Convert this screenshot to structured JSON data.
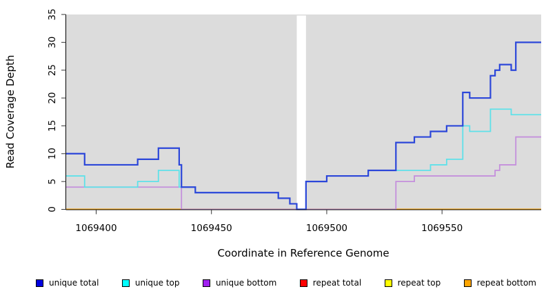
{
  "chart": {
    "y_axis": {
      "label": "Read Coverage Depth"
    },
    "x_axis": {
      "label": "Coordinate in Reference Genome"
    }
  },
  "chart_data": {
    "type": "line",
    "step": true,
    "title": "",
    "xlabel": "Coordinate in Reference Genome",
    "ylabel": "Read Coverage Depth",
    "xlim": [
      1069387,
      1069593
    ],
    "ylim": [
      0,
      35
    ],
    "x_ticks": [
      1069400,
      1069450,
      1069500,
      1069550
    ],
    "y_ticks": [
      0,
      5,
      10,
      15,
      20,
      25,
      30,
      35
    ],
    "plot_bg": "#dcdcdc",
    "gap_region": {
      "from": 1069487,
      "to": 1069491
    },
    "grid": "off",
    "legend_position": "bottom",
    "series": [
      {
        "name": "repeat total",
        "color": "#e02020",
        "width": 1.5,
        "points": [
          [
            1069387,
            0
          ],
          [
            1069593,
            0
          ]
        ]
      },
      {
        "name": "repeat top",
        "color": "#ffff00",
        "width": 1.5,
        "points": [
          [
            1069387,
            0
          ],
          [
            1069593,
            0
          ]
        ]
      },
      {
        "name": "repeat bottom",
        "color": "#ffa500",
        "width": 2,
        "points": [
          [
            1069387,
            0
          ],
          [
            1069593,
            0
          ]
        ]
      },
      {
        "name": "unique bottom",
        "color": "#c48fdc",
        "width": 1.8,
        "points": [
          [
            1069387,
            4
          ],
          [
            1069437,
            0
          ],
          [
            1069530,
            5
          ],
          [
            1069538,
            6
          ],
          [
            1069573,
            7
          ],
          [
            1069575,
            8
          ],
          [
            1069582,
            13
          ],
          [
            1069593,
            13
          ]
        ]
      },
      {
        "name": "unique top",
        "color": "#5ee1e9",
        "width": 1.8,
        "points": [
          [
            1069387,
            6
          ],
          [
            1069395,
            4
          ],
          [
            1069418,
            5
          ],
          [
            1069427,
            7
          ],
          [
            1069436,
            4
          ],
          [
            1069443,
            3
          ],
          [
            1069479,
            2
          ],
          [
            1069484,
            1
          ],
          [
            1069487,
            0
          ],
          [
            1069491,
            5
          ],
          [
            1069500,
            6
          ],
          [
            1069518,
            7
          ],
          [
            1069545,
            8
          ],
          [
            1069552,
            9
          ],
          [
            1069559,
            15
          ],
          [
            1069562,
            14
          ],
          [
            1069571,
            18
          ],
          [
            1069580,
            17
          ],
          [
            1069593,
            17
          ]
        ]
      },
      {
        "name": "unique total",
        "color": "#2b46d9",
        "width": 2.2,
        "points": [
          [
            1069387,
            10
          ],
          [
            1069395,
            8
          ],
          [
            1069418,
            9
          ],
          [
            1069427,
            11
          ],
          [
            1069436,
            8
          ],
          [
            1069437,
            4
          ],
          [
            1069443,
            3
          ],
          [
            1069479,
            2
          ],
          [
            1069484,
            1
          ],
          [
            1069487,
            0
          ],
          [
            1069491,
            5
          ],
          [
            1069500,
            6
          ],
          [
            1069518,
            7
          ],
          [
            1069530,
            12
          ],
          [
            1069538,
            13
          ],
          [
            1069545,
            14
          ],
          [
            1069552,
            15
          ],
          [
            1069559,
            21
          ],
          [
            1069562,
            20
          ],
          [
            1069571,
            24
          ],
          [
            1069573,
            25
          ],
          [
            1069575,
            26
          ],
          [
            1069580,
            25
          ],
          [
            1069582,
            30
          ],
          [
            1069593,
            30
          ]
        ]
      }
    ]
  },
  "legend": {
    "items": [
      {
        "label": "unique total",
        "color": "#0000e0"
      },
      {
        "label": "unique top",
        "color": "#00ffff"
      },
      {
        "label": "unique bottom",
        "color": "#a020f0"
      },
      {
        "label": "repeat total",
        "color": "#ff0000"
      },
      {
        "label": "repeat top",
        "color": "#ffff00"
      },
      {
        "label": "repeat bottom",
        "color": "#ffa500"
      }
    ]
  }
}
